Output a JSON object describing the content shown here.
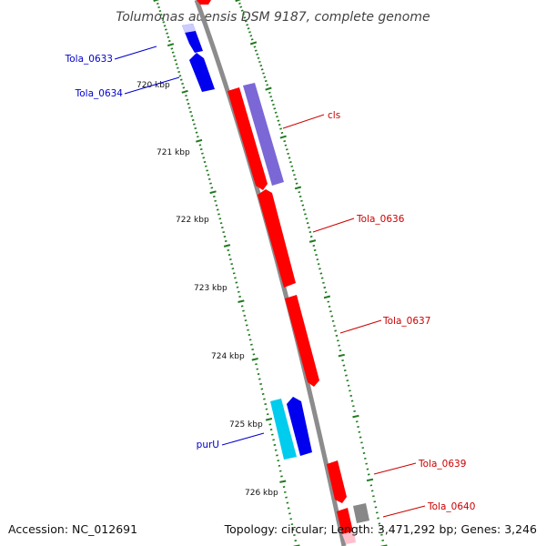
{
  "title": "Tolumonas auensis DSM 9187, complete genome",
  "accession": "Accession: NC_012691",
  "summary": "Topology: circular; Length: 3,471,292 bp; Genes: 3,246",
  "colors": {
    "backbone": "#8c8c8c",
    "tick": "#1f7a1f",
    "red": "#ff0000",
    "blue": "#0000ee",
    "purple": "#7b68d6",
    "cyan": "#00ccee",
    "gray": "#888888",
    "pink": "#ffc0cb",
    "label_red": "#cc0000",
    "label_blue": "#0000cc"
  },
  "kbp_labels": [
    "720 kbp",
    "721 kbp",
    "722 kbp",
    "723 kbp",
    "724 kbp",
    "725 kbp",
    "726 kbp"
  ],
  "gene_labels": [
    {
      "text": "Tola_0633",
      "color": "blue"
    },
    {
      "text": "Tola_0634",
      "color": "blue"
    },
    {
      "text": "cls",
      "color": "red"
    },
    {
      "text": "Tola_0636",
      "color": "red"
    },
    {
      "text": "Tola_0637",
      "color": "red"
    },
    {
      "text": "purU",
      "color": "blue"
    },
    {
      "text": "Tola_0639",
      "color": "red"
    },
    {
      "text": "Tola_0640",
      "color": "red"
    }
  ],
  "feature_strand": [
    "forward",
    "forward",
    "forward",
    "forward",
    "forward",
    "forward",
    "reverse",
    "forward",
    "forward",
    "forward"
  ],
  "feature_colors": [
    "red",
    "blue",
    "blue",
    "red",
    "purple",
    "red",
    "red",
    "cyan",
    "blue",
    "red",
    "red",
    "gray",
    "pink"
  ]
}
